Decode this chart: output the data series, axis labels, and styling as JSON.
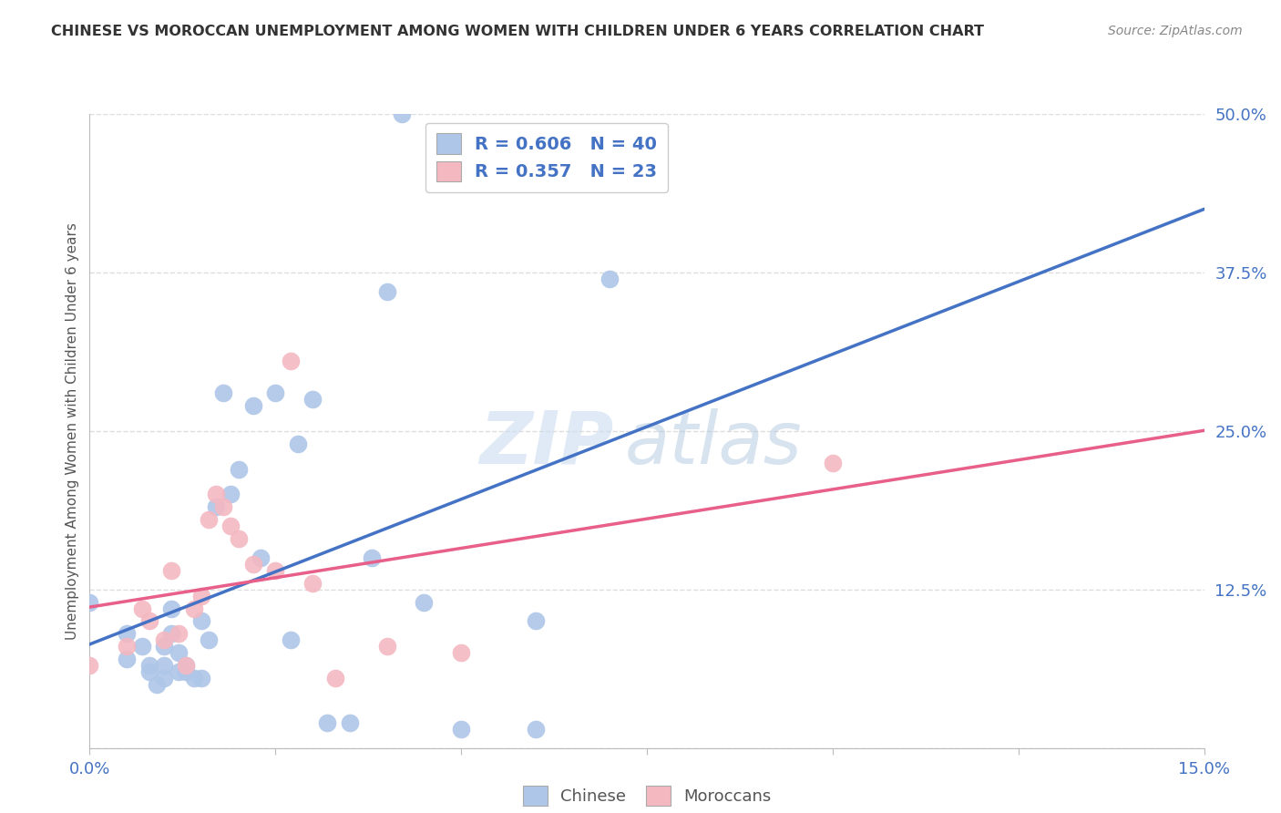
{
  "title": "CHINESE VS MOROCCAN UNEMPLOYMENT AMONG WOMEN WITH CHILDREN UNDER 6 YEARS CORRELATION CHART",
  "source": "Source: ZipAtlas.com",
  "ylabel": "Unemployment Among Women with Children Under 6 years",
  "xlim": [
    0.0,
    0.15
  ],
  "ylim": [
    0.0,
    0.5
  ],
  "xticks": [
    0.0,
    0.025,
    0.05,
    0.075,
    0.1,
    0.125,
    0.15
  ],
  "xticklabels": [
    "0.0%",
    "",
    "",
    "",
    "",
    "",
    "15.0%"
  ],
  "yticks": [
    0.0,
    0.125,
    0.25,
    0.375,
    0.5
  ],
  "yticklabels": [
    "",
    "12.5%",
    "25.0%",
    "37.5%",
    "50.0%"
  ],
  "chinese_color": "#aec6e8",
  "moroccan_color": "#f4b8c1",
  "trendline_chinese_color": "#4472c4",
  "trendline_moroccan_color": "#e8608a",
  "legend_text_chinese": "R = 0.606   N = 40",
  "legend_text_moroccan": "R = 0.357   N = 23",
  "watermark_zip": "ZIP",
  "watermark_atlas": "atlas",
  "chinese_x": [
    0.0,
    0.005,
    0.005,
    0.007,
    0.008,
    0.008,
    0.009,
    0.01,
    0.01,
    0.01,
    0.011,
    0.011,
    0.012,
    0.012,
    0.013,
    0.013,
    0.014,
    0.015,
    0.015,
    0.016,
    0.017,
    0.018,
    0.019,
    0.02,
    0.022,
    0.023,
    0.025,
    0.027,
    0.028,
    0.03,
    0.032,
    0.035,
    0.038,
    0.04,
    0.042,
    0.045,
    0.05,
    0.06,
    0.07,
    0.06
  ],
  "chinese_y": [
    0.115,
    0.09,
    0.07,
    0.08,
    0.065,
    0.06,
    0.05,
    0.08,
    0.065,
    0.055,
    0.11,
    0.09,
    0.075,
    0.06,
    0.065,
    0.06,
    0.055,
    0.1,
    0.055,
    0.085,
    0.19,
    0.28,
    0.2,
    0.22,
    0.27,
    0.15,
    0.28,
    0.085,
    0.24,
    0.275,
    0.02,
    0.02,
    0.15,
    0.36,
    0.5,
    0.115,
    0.015,
    0.015,
    0.37,
    0.1
  ],
  "moroccan_x": [
    0.0,
    0.005,
    0.007,
    0.008,
    0.01,
    0.011,
    0.012,
    0.013,
    0.014,
    0.015,
    0.016,
    0.017,
    0.018,
    0.019,
    0.02,
    0.022,
    0.025,
    0.027,
    0.03,
    0.033,
    0.04,
    0.1,
    0.05
  ],
  "moroccan_y": [
    0.065,
    0.08,
    0.11,
    0.1,
    0.085,
    0.14,
    0.09,
    0.065,
    0.11,
    0.12,
    0.18,
    0.2,
    0.19,
    0.175,
    0.165,
    0.145,
    0.14,
    0.305,
    0.13,
    0.055,
    0.08,
    0.225,
    0.075
  ],
  "background_color": "#ffffff",
  "grid_color": "#dddddd",
  "tick_color": "#4472c4",
  "label_color": "#555555",
  "title_color": "#333333",
  "source_color": "#888888"
}
